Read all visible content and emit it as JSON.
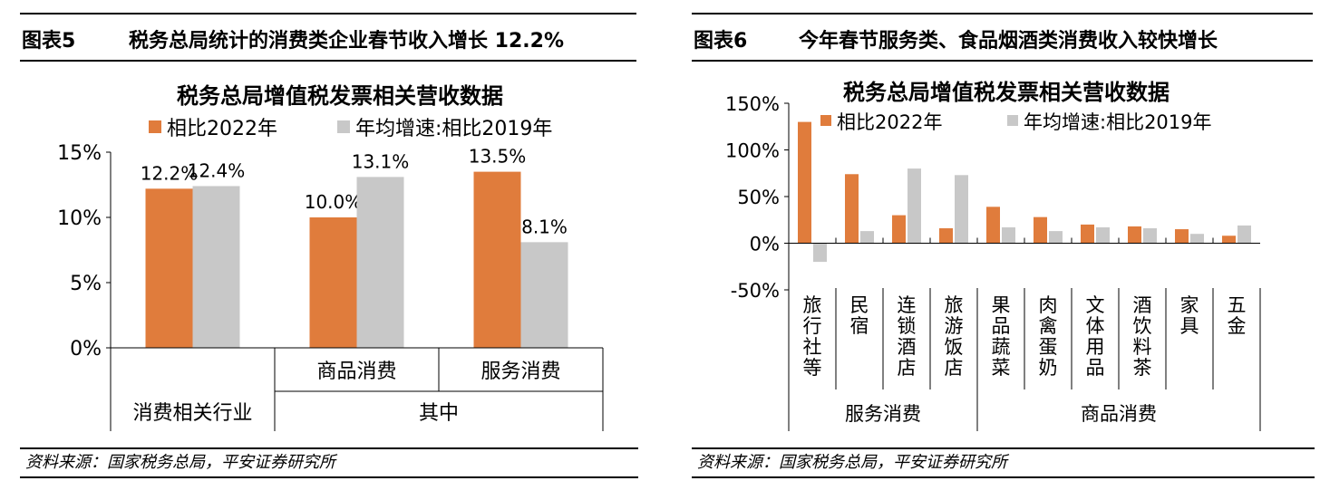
{
  "figure5": {
    "label": "图表5",
    "title": "税务总局统计的消费类企业春节收入增长 12.2%",
    "source": "资料来源：国家税务总局，平安证券研究所",
    "chart_data": {
      "type": "bar",
      "title": "税务总局增值税发票相关营收数据",
      "categories": [
        "消费相关行业",
        "商品消费",
        "服务消费"
      ],
      "group_labels": [
        "其中"
      ],
      "series": [
        {
          "name": "相比2022年",
          "values": [
            12.2,
            10.0,
            13.5
          ],
          "labels": [
            "12.2%",
            "10.0%",
            "13.5%"
          ],
          "color": "#e07c3c"
        },
        {
          "name": "年均增速:相比2019年",
          "values": [
            12.4,
            13.1,
            8.1
          ],
          "labels": [
            "12.4%",
            "13.1%",
            "8.1%"
          ],
          "color": "#c8c8c8"
        }
      ],
      "yticks": [
        "15%",
        "10%",
        "5%",
        "0%"
      ],
      "ylim": [
        0,
        15
      ],
      "unit": "%",
      "legend": "top",
      "grid": false
    }
  },
  "figure6": {
    "label": "图表6",
    "title": "今年春节服务类、食品烟酒类消费收入较快增长",
    "source": "资料来源：国家税务总局，平安证券研究所",
    "chart_data": {
      "type": "bar",
      "title": "税务总局增值税发票相关营收数据",
      "categories": [
        "旅行社等",
        "民宿",
        "连锁酒店",
        "旅游饭店",
        "果品蔬菜",
        "肉禽蛋奶",
        "文体用品",
        "酒饮料茶",
        "家具",
        "五金"
      ],
      "groups": [
        {
          "name": "服务消费",
          "count": 4
        },
        {
          "name": "商品消费",
          "count": 6
        }
      ],
      "series": [
        {
          "name": "相比2022年",
          "values": [
            130,
            74,
            30,
            16,
            39,
            28,
            20,
            18,
            15,
            8
          ],
          "color": "#e07c3c"
        },
        {
          "name": "年均增速:相比2019年",
          "values": [
            -20,
            13,
            80,
            73,
            17,
            13,
            17,
            16,
            10,
            19
          ],
          "color": "#c8c8c8"
        }
      ],
      "yticks": [
        "150%",
        "100%",
        "50%",
        "0%",
        "-50%"
      ],
      "ylim": [
        -50,
        150
      ],
      "unit": "%",
      "legend": "top",
      "grid": false
    }
  }
}
